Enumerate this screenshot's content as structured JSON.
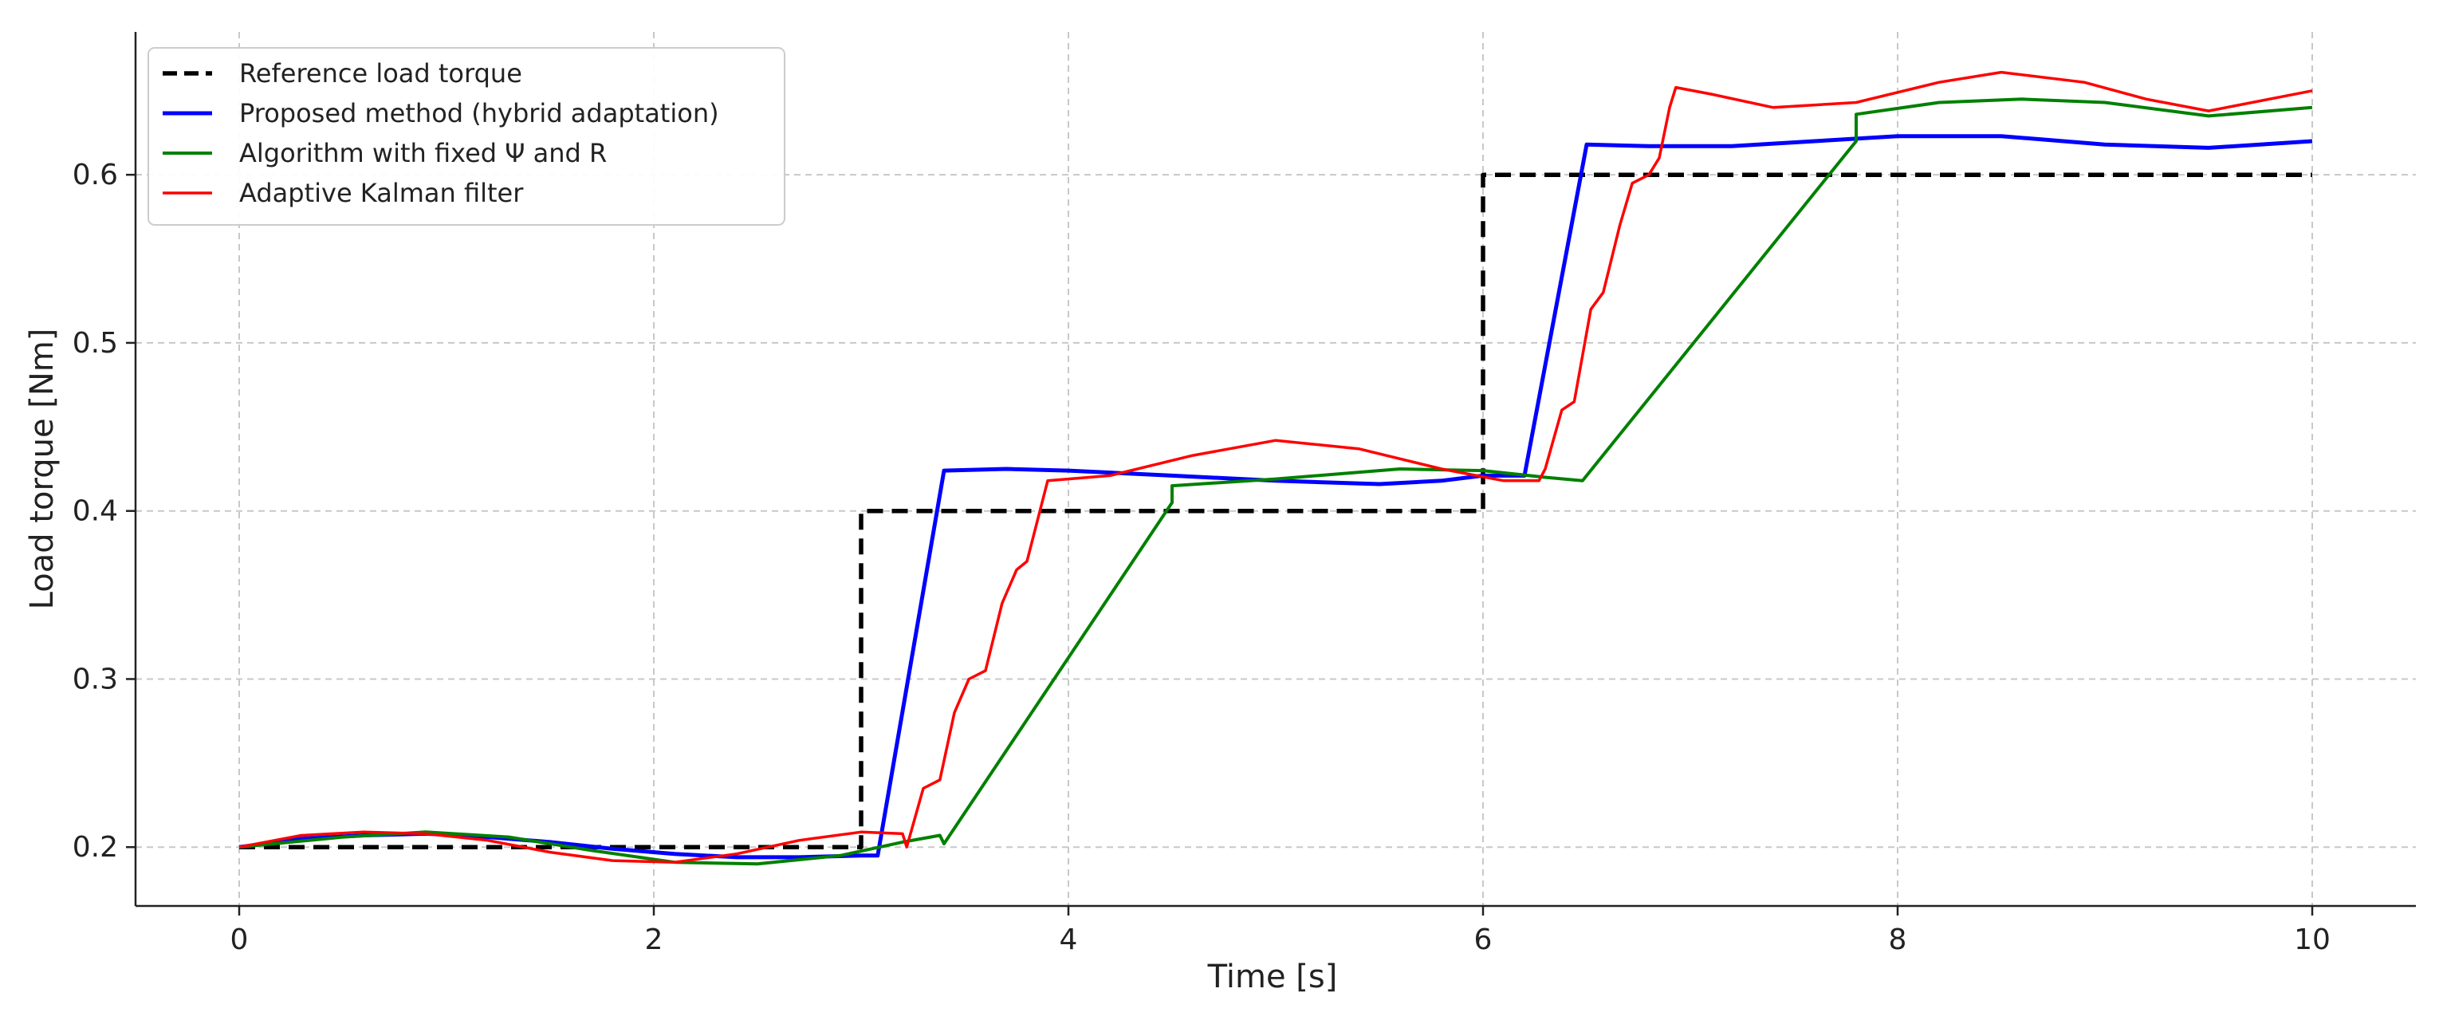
{
  "chart_data": {
    "type": "line",
    "title": "",
    "xlabel": "Time [s]",
    "ylabel": "Load torque [Nm]",
    "xlim": [
      -0.5,
      10.5
    ],
    "ylim": [
      0.165,
      0.685
    ],
    "xticks": [
      0,
      2,
      4,
      6,
      8,
      10
    ],
    "yticks": [
      0.2,
      0.3,
      0.4,
      0.5,
      0.6
    ],
    "grid": true,
    "legend_position": "top-left",
    "series": [
      {
        "name": "Reference load torque",
        "color": "#000000",
        "style": "dashed",
        "x": [
          0,
          3.0,
          3.0,
          6.0,
          6.0,
          10.0
        ],
        "y": [
          0.2,
          0.2,
          0.4,
          0.4,
          0.6,
          0.6
        ]
      },
      {
        "name": "Proposed method (hybrid adaptation)",
        "color": "#0000ff",
        "style": "solid",
        "x": [
          0,
          0.3,
          0.6,
          0.9,
          1.2,
          1.5,
          1.8,
          2.1,
          2.4,
          2.7,
          3.0,
          3.08,
          3.4,
          3.7,
          4.0,
          4.5,
          5.0,
          5.5,
          5.8,
          6.0,
          6.2,
          6.5,
          6.8,
          7.2,
          7.6,
          8.0,
          8.5,
          9.0,
          9.5,
          10.0
        ],
        "y": [
          0.2,
          0.205,
          0.207,
          0.208,
          0.206,
          0.203,
          0.199,
          0.196,
          0.194,
          0.194,
          0.195,
          0.195,
          0.424,
          0.425,
          0.424,
          0.421,
          0.418,
          0.416,
          0.418,
          0.421,
          0.421,
          0.618,
          0.617,
          0.617,
          0.62,
          0.623,
          0.623,
          0.618,
          0.616,
          0.62
        ]
      },
      {
        "name": "Algorithm with fixed Ψ and R",
        "color": "#008000",
        "style": "solid",
        "x": [
          0,
          0.5,
          0.9,
          1.3,
          1.7,
          2.1,
          2.5,
          2.9,
          3.2,
          3.38,
          3.4,
          4.5,
          4.5,
          5.0,
          5.6,
          6.0,
          6.3,
          6.48,
          7.8,
          7.8,
          8.2,
          8.6,
          9.0,
          9.5,
          10.0
        ],
        "y": [
          0.2,
          0.206,
          0.209,
          0.206,
          0.198,
          0.191,
          0.19,
          0.195,
          0.203,
          0.207,
          0.202,
          0.405,
          0.415,
          0.419,
          0.425,
          0.424,
          0.42,
          0.418,
          0.62,
          0.636,
          0.643,
          0.645,
          0.643,
          0.635,
          0.64
        ]
      },
      {
        "name": "Adaptive Kalman filter",
        "color": "#ff0000",
        "style": "solid",
        "x": [
          0,
          0.3,
          0.6,
          0.9,
          1.2,
          1.5,
          1.8,
          2.1,
          2.4,
          2.7,
          3.0,
          3.2,
          3.22,
          3.3,
          3.38,
          3.45,
          3.52,
          3.6,
          3.68,
          3.75,
          3.8,
          3.9,
          4.2,
          4.6,
          5.0,
          5.4,
          5.8,
          6.1,
          6.27,
          6.3,
          6.38,
          6.44,
          6.52,
          6.58,
          6.66,
          6.72,
          6.8,
          6.85,
          6.9,
          6.93,
          7.1,
          7.4,
          7.8,
          8.2,
          8.5,
          8.9,
          9.2,
          9.5,
          10.0
        ],
        "y": [
          0.2,
          0.207,
          0.209,
          0.208,
          0.204,
          0.197,
          0.192,
          0.191,
          0.196,
          0.204,
          0.209,
          0.208,
          0.2,
          0.235,
          0.24,
          0.28,
          0.3,
          0.305,
          0.345,
          0.365,
          0.37,
          0.418,
          0.421,
          0.433,
          0.442,
          0.437,
          0.425,
          0.418,
          0.418,
          0.425,
          0.46,
          0.465,
          0.52,
          0.53,
          0.57,
          0.595,
          0.6,
          0.61,
          0.64,
          0.652,
          0.648,
          0.64,
          0.643,
          0.655,
          0.661,
          0.655,
          0.645,
          0.638,
          0.65
        ]
      }
    ]
  }
}
